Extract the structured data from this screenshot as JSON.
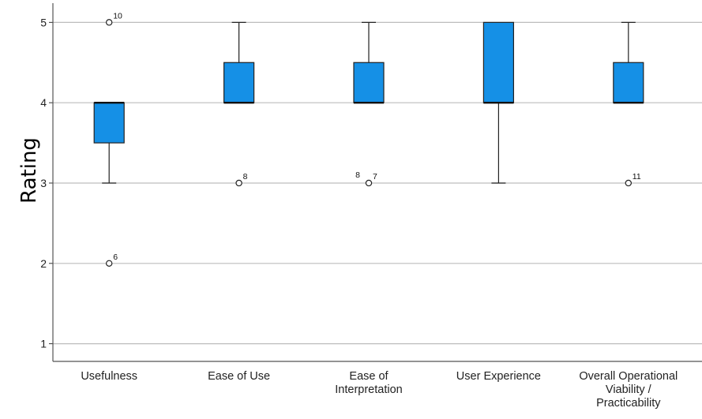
{
  "chart_data": {
    "type": "boxplot",
    "ylabel": "Rating",
    "xlabel": "",
    "ylim": [
      0.78,
      5.2
    ],
    "yticks": [
      1,
      2,
      3,
      4,
      5
    ],
    "grid": true,
    "box_color": "#1590E6",
    "categories": [
      "Usefulness",
      "Ease of Use",
      "Ease of Interpretation",
      "User Experience",
      "Overall Operational Viability / Practicability"
    ],
    "category_lines": [
      [
        "Usefulness"
      ],
      [
        "Ease of Use"
      ],
      [
        "Ease of",
        "Interpretation"
      ],
      [
        "User Experience"
      ],
      [
        "Overall Operational",
        "Viability /",
        "Practicability"
      ]
    ],
    "boxes": [
      {
        "whisker_low": 3,
        "q1": 3.5,
        "median": 4,
        "q3": 4,
        "whisker_high": 4,
        "outliers": [
          {
            "value": 5,
            "labels": [
              "10"
            ]
          },
          {
            "value": 2,
            "labels": [
              "6"
            ]
          }
        ]
      },
      {
        "whisker_low": 4,
        "q1": 4,
        "median": 4,
        "q3": 4.5,
        "whisker_high": 5,
        "outliers": [
          {
            "value": 3,
            "labels": [
              "8"
            ]
          }
        ]
      },
      {
        "whisker_low": 4,
        "q1": 4,
        "median": 4,
        "q3": 4.5,
        "whisker_high": 5,
        "outliers": [
          {
            "value": 3,
            "labels": [
              "8",
              "7"
            ]
          }
        ]
      },
      {
        "whisker_low": 3,
        "q1": 4,
        "median": 4,
        "q3": 5,
        "whisker_high": 5,
        "outliers": []
      },
      {
        "whisker_low": 4,
        "q1": 4,
        "median": 4,
        "q3": 4.5,
        "whisker_high": 5,
        "outliers": [
          {
            "value": 3,
            "labels": [
              "11"
            ]
          }
        ]
      }
    ]
  }
}
